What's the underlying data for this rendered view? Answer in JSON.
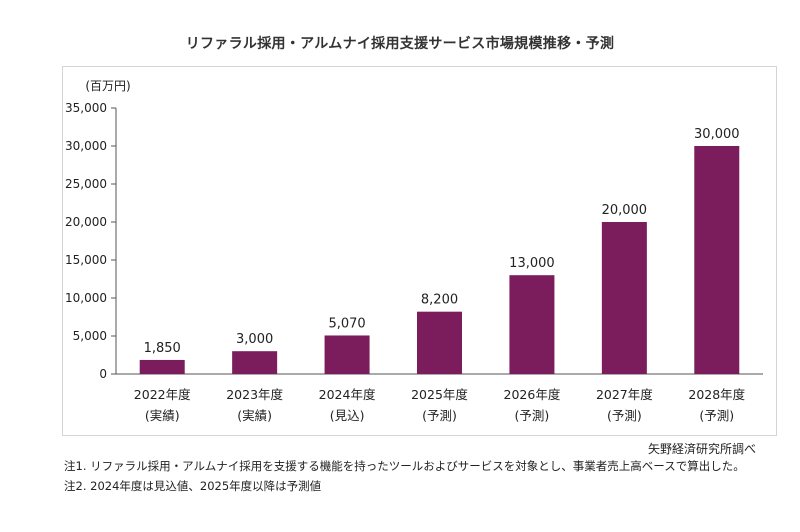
{
  "title": "リファラル採用・アルムナイ採用支援サービス市場規模推移・予測",
  "source": "矢野経済研究所調べ",
  "notes": [
    "注1. リファラル採用・アルムナイ採用を支援する機能を持ったツールおよびサービスを対象とし、事業者売上高ベースで算出した。",
    "注2. 2024年度は見込値、2025年度以降は予測値"
  ],
  "colors": {
    "bar": "#7b1c5c",
    "axis": "#555555",
    "text": "#222222"
  },
  "chart_data": {
    "type": "bar",
    "unit_label": "(百万円)",
    "categories": [
      "2022年度",
      "2023年度",
      "2024年度",
      "2025年度",
      "2026年度",
      "2027年度",
      "2028年度"
    ],
    "category_sublabels": [
      "(実績)",
      "(実績)",
      "(見込)",
      "(予測)",
      "(予測)",
      "(予測)",
      "(予測)"
    ],
    "values": [
      1850,
      3000,
      5070,
      8200,
      13000,
      20000,
      30000
    ],
    "data_labels": [
      "1,850",
      "3,000",
      "5,070",
      "8,200",
      "13,000",
      "20,000",
      "30,000"
    ],
    "ylim": [
      0,
      35000
    ],
    "yticks": [
      0,
      5000,
      10000,
      15000,
      20000,
      25000,
      30000,
      35000
    ],
    "ytick_labels": [
      "0",
      "5,000",
      "10,000",
      "15,000",
      "20,000",
      "25,000",
      "30,000",
      "35,000"
    ],
    "grid": false,
    "legend": "none"
  }
}
